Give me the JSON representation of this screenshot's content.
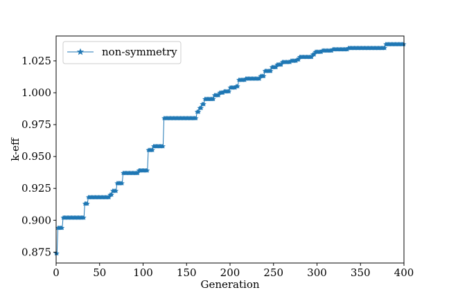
{
  "chart_data": {
    "type": "line",
    "title": "",
    "xlabel": "Generation",
    "ylabel": "k-eff",
    "xlim": [
      0,
      400
    ],
    "ylim": [
      0.8665,
      1.0445
    ],
    "x_ticks": [
      0,
      50,
      100,
      150,
      200,
      250,
      300,
      350,
      400
    ],
    "y_ticks": [
      0.875,
      0.9,
      0.925,
      0.95,
      0.975,
      1.0,
      1.025
    ],
    "x_tick_labels": [
      "0",
      "50",
      "100",
      "150",
      "200",
      "250",
      "300",
      "350",
      "400"
    ],
    "y_tick_labels": [
      "0.875",
      "0.900",
      "0.925",
      "0.950",
      "0.975",
      "1.000",
      "1.025"
    ],
    "grid": false,
    "legend_position": "top-left",
    "marker": "star",
    "color": "#1f77b4",
    "series": [
      {
        "name": "non-symmetry",
        "steps": [
          [
            0,
            0.874
          ],
          [
            2,
            0.894
          ],
          [
            8,
            0.902
          ],
          [
            33,
            0.913
          ],
          [
            37,
            0.918
          ],
          [
            62,
            0.92
          ],
          [
            65,
            0.923
          ],
          [
            70,
            0.929
          ],
          [
            77,
            0.937
          ],
          [
            95,
            0.939
          ],
          [
            106,
            0.955
          ],
          [
            112,
            0.958
          ],
          [
            124,
            0.98
          ],
          [
            162,
            0.985
          ],
          [
            165,
            0.988
          ],
          [
            168,
            0.991
          ],
          [
            171,
            0.995
          ],
          [
            182,
            0.998
          ],
          [
            188,
            1.0
          ],
          [
            193,
            1.001
          ],
          [
            200,
            1.004
          ],
          [
            207,
            1.005
          ],
          [
            210,
            1.01
          ],
          [
            218,
            1.011
          ],
          [
            235,
            1.013
          ],
          [
            240,
            1.017
          ],
          [
            248,
            1.02
          ],
          [
            254,
            1.022
          ],
          [
            260,
            1.024
          ],
          [
            270,
            1.025
          ],
          [
            277,
            1.026
          ],
          [
            280,
            1.028
          ],
          [
            295,
            1.03
          ],
          [
            298,
            1.032
          ],
          [
            306,
            1.033
          ],
          [
            318,
            1.034
          ],
          [
            336,
            1.035
          ],
          [
            379,
            1.038
          ]
        ]
      }
    ]
  }
}
